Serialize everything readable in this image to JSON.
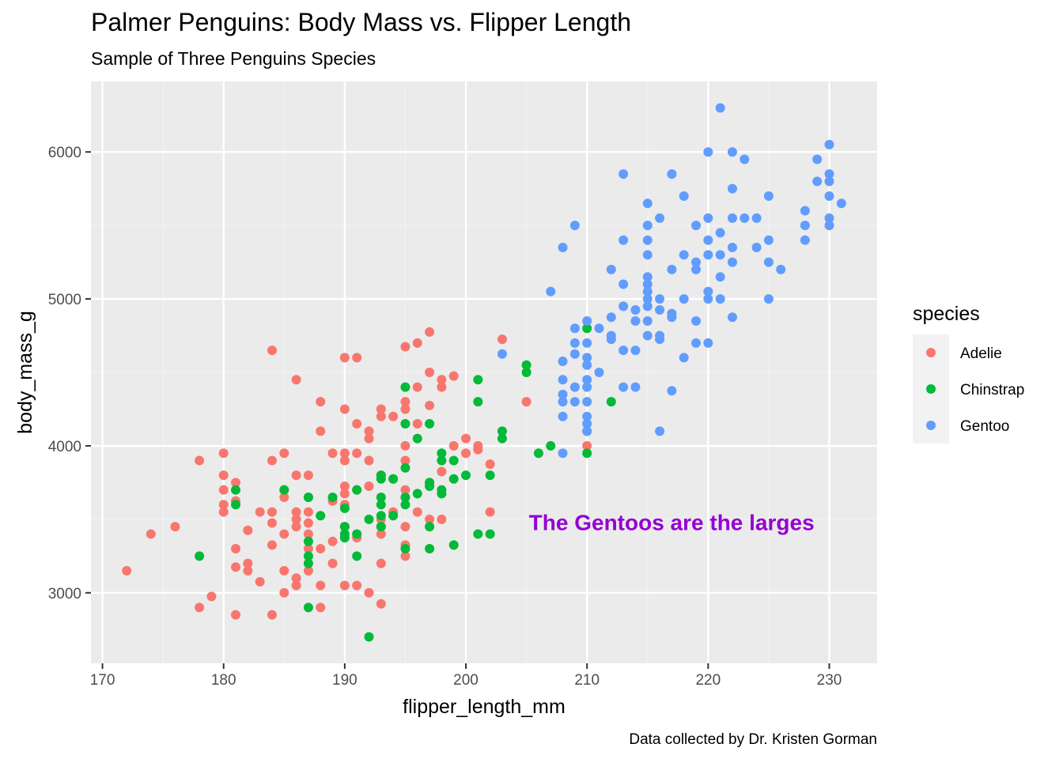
{
  "chart_data": {
    "type": "scatter",
    "title": "Palmer Penguins: Body Mass vs. Flipper Length",
    "subtitle": "Sample of Three Penguins Species",
    "caption": "Data collected by Dr. Kristen Gorman",
    "xlabel": "flipper_length_mm",
    "ylabel": "body_mass_g",
    "xlim": [
      169.05,
      233.95
    ],
    "ylim": [
      2520,
      6480
    ],
    "x_ticks": [
      170,
      180,
      190,
      200,
      210,
      220,
      230
    ],
    "y_ticks": [
      3000,
      4000,
      5000,
      6000
    ],
    "grid": true,
    "panel_background": "#ebebeb",
    "legend": {
      "title": "species",
      "placement": "right"
    },
    "annotation": {
      "text": "The Gentoos are the larges",
      "x": 205.2,
      "y": 3480,
      "color": "#9400d3"
    },
    "series": [
      {
        "name": "Adelie",
        "color": "#f8766d",
        "points": [
          [
            172,
            3150
          ],
          [
            174,
            3400
          ],
          [
            176,
            3450
          ],
          [
            178,
            3900
          ],
          [
            178,
            2900
          ],
          [
            179,
            2975
          ],
          [
            180,
            3950
          ],
          [
            180,
            3800
          ],
          [
            180,
            3700
          ],
          [
            180,
            3600
          ],
          [
            180,
            3550
          ],
          [
            181,
            3750
          ],
          [
            181,
            3625
          ],
          [
            181,
            3300
          ],
          [
            181,
            3175
          ],
          [
            181,
            2850
          ],
          [
            182,
            3425
          ],
          [
            182,
            3200
          ],
          [
            182,
            3150
          ],
          [
            183,
            3550
          ],
          [
            183,
            3075
          ],
          [
            184,
            4650
          ],
          [
            184,
            3900
          ],
          [
            184,
            3550
          ],
          [
            184,
            3475
          ],
          [
            184,
            3325
          ],
          [
            184,
            2850
          ],
          [
            185,
            3950
          ],
          [
            185,
            3700
          ],
          [
            185,
            3650
          ],
          [
            185,
            3400
          ],
          [
            185,
            3150
          ],
          [
            185,
            3000
          ],
          [
            186,
            4450
          ],
          [
            186,
            3800
          ],
          [
            186,
            3550
          ],
          [
            186,
            3500
          ],
          [
            186,
            3450
          ],
          [
            186,
            3100
          ],
          [
            186,
            3050
          ],
          [
            187,
            3800
          ],
          [
            187,
            3650
          ],
          [
            187,
            3550
          ],
          [
            187,
            3475
          ],
          [
            187,
            3400
          ],
          [
            187,
            3300
          ],
          [
            187,
            3150
          ],
          [
            188,
            4300
          ],
          [
            188,
            4100
          ],
          [
            188,
            3300
          ],
          [
            188,
            3050
          ],
          [
            188,
            2900
          ],
          [
            189,
            3950
          ],
          [
            189,
            3625
          ],
          [
            189,
            3350
          ],
          [
            189,
            3200
          ],
          [
            190,
            4600
          ],
          [
            190,
            4250
          ],
          [
            190,
            3950
          ],
          [
            190,
            3900
          ],
          [
            190,
            3725
          ],
          [
            190,
            3675
          ],
          [
            190,
            3600
          ],
          [
            190,
            3450
          ],
          [
            190,
            3050
          ],
          [
            191,
            4600
          ],
          [
            191,
            4150
          ],
          [
            191,
            3950
          ],
          [
            191,
            3700
          ],
          [
            191,
            3375
          ],
          [
            191,
            3050
          ],
          [
            192,
            4100
          ],
          [
            192,
            4050
          ],
          [
            192,
            3900
          ],
          [
            192,
            3725
          ],
          [
            192,
            3000
          ],
          [
            193,
            4250
          ],
          [
            193,
            4200
          ],
          [
            193,
            3800
          ],
          [
            193,
            3500
          ],
          [
            193,
            3450
          ],
          [
            193,
            3400
          ],
          [
            193,
            3200
          ],
          [
            193,
            2925
          ],
          [
            194,
            4200
          ],
          [
            194,
            3775
          ],
          [
            194,
            3550
          ],
          [
            195,
            4675
          ],
          [
            195,
            4300
          ],
          [
            195,
            4250
          ],
          [
            195,
            4000
          ],
          [
            195,
            3900
          ],
          [
            195,
            3700
          ],
          [
            195,
            3450
          ],
          [
            195,
            3325
          ],
          [
            195,
            3250
          ],
          [
            196,
            4700
          ],
          [
            196,
            4400
          ],
          [
            196,
            4150
          ],
          [
            196,
            3550
          ],
          [
            197,
            4775
          ],
          [
            197,
            4500
          ],
          [
            197,
            4275
          ],
          [
            197,
            3750
          ],
          [
            197,
            3500
          ],
          [
            198,
            4450
          ],
          [
            198,
            4400
          ],
          [
            198,
            3825
          ],
          [
            198,
            3500
          ],
          [
            199,
            4475
          ],
          [
            199,
            4000
          ],
          [
            200,
            4050
          ],
          [
            200,
            3950
          ],
          [
            201,
            4000
          ],
          [
            201,
            3975
          ],
          [
            202,
            3875
          ],
          [
            202,
            3550
          ],
          [
            203,
            4725
          ],
          [
            205,
            4300
          ],
          [
            210,
            4000
          ]
        ]
      },
      {
        "name": "Chinstrap",
        "color": "#00ba38",
        "points": [
          [
            178,
            3250
          ],
          [
            181,
            3700
          ],
          [
            181,
            3600
          ],
          [
            185,
            3700
          ],
          [
            187,
            3650
          ],
          [
            187,
            3350
          ],
          [
            187,
            3250
          ],
          [
            187,
            3200
          ],
          [
            187,
            2900
          ],
          [
            188,
            3525
          ],
          [
            189,
            3650
          ],
          [
            190,
            3575
          ],
          [
            190,
            3450
          ],
          [
            190,
            3400
          ],
          [
            190,
            3375
          ],
          [
            191,
            3700
          ],
          [
            191,
            3400
          ],
          [
            191,
            3250
          ],
          [
            192,
            3500
          ],
          [
            192,
            2700
          ],
          [
            193,
            3800
          ],
          [
            193,
            3775
          ],
          [
            193,
            3650
          ],
          [
            193,
            3600
          ],
          [
            193,
            3525
          ],
          [
            193,
            3450
          ],
          [
            194,
            3775
          ],
          [
            194,
            3525
          ],
          [
            195,
            4400
          ],
          [
            195,
            4150
          ],
          [
            195,
            3850
          ],
          [
            195,
            3650
          ],
          [
            195,
            3600
          ],
          [
            195,
            3300
          ],
          [
            196,
            4050
          ],
          [
            196,
            3675
          ],
          [
            197,
            4150
          ],
          [
            197,
            3750
          ],
          [
            197,
            3725
          ],
          [
            197,
            3450
          ],
          [
            197,
            3300
          ],
          [
            198,
            3950
          ],
          [
            198,
            3900
          ],
          [
            198,
            3700
          ],
          [
            198,
            3675
          ],
          [
            199,
            3900
          ],
          [
            199,
            3775
          ],
          [
            199,
            3325
          ],
          [
            200,
            3800
          ],
          [
            201,
            4450
          ],
          [
            201,
            4300
          ],
          [
            201,
            3400
          ],
          [
            202,
            3800
          ],
          [
            202,
            3400
          ],
          [
            203,
            4100
          ],
          [
            203,
            4050
          ],
          [
            205,
            4550
          ],
          [
            205,
            4500
          ],
          [
            206,
            3950
          ],
          [
            207,
            4000
          ],
          [
            210,
            4800
          ],
          [
            210,
            4100
          ],
          [
            210,
            3950
          ],
          [
            212,
            4300
          ]
        ]
      },
      {
        "name": "Gentoo",
        "color": "#619cff",
        "points": [
          [
            203,
            4625
          ],
          [
            207,
            5050
          ],
          [
            208,
            5350
          ],
          [
            208,
            4575
          ],
          [
            208,
            4450
          ],
          [
            208,
            4350
          ],
          [
            208,
            4300
          ],
          [
            208,
            4200
          ],
          [
            208,
            3950
          ],
          [
            209,
            5500
          ],
          [
            209,
            4800
          ],
          [
            209,
            4700
          ],
          [
            209,
            4625
          ],
          [
            209,
            4400
          ],
          [
            209,
            4300
          ],
          [
            210,
            4850
          ],
          [
            210,
            4700
          ],
          [
            210,
            4600
          ],
          [
            210,
            4550
          ],
          [
            210,
            4450
          ],
          [
            210,
            4400
          ],
          [
            210,
            4300
          ],
          [
            210,
            4200
          ],
          [
            210,
            4150
          ],
          [
            210,
            4100
          ],
          [
            211,
            4800
          ],
          [
            211,
            4500
          ],
          [
            212,
            5200
          ],
          [
            212,
            4875
          ],
          [
            212,
            4750
          ],
          [
            212,
            4725
          ],
          [
            213,
            5850
          ],
          [
            213,
            5400
          ],
          [
            213,
            5100
          ],
          [
            213,
            4950
          ],
          [
            213,
            4650
          ],
          [
            213,
            4400
          ],
          [
            214,
            4925
          ],
          [
            214,
            4850
          ],
          [
            214,
            4650
          ],
          [
            214,
            4400
          ],
          [
            215,
            5650
          ],
          [
            215,
            5500
          ],
          [
            215,
            5400
          ],
          [
            215,
            5300
          ],
          [
            215,
            5150
          ],
          [
            215,
            5100
          ],
          [
            215,
            5050
          ],
          [
            215,
            5000
          ],
          [
            215,
            4950
          ],
          [
            215,
            4850
          ],
          [
            215,
            4750
          ],
          [
            216,
            5550
          ],
          [
            216,
            5000
          ],
          [
            216,
            4925
          ],
          [
            216,
            4750
          ],
          [
            216,
            4725
          ],
          [
            216,
            4100
          ],
          [
            217,
            5850
          ],
          [
            217,
            5200
          ],
          [
            217,
            4900
          ],
          [
            217,
            4875
          ],
          [
            217,
            4375
          ],
          [
            218,
            5700
          ],
          [
            218,
            5300
          ],
          [
            218,
            5000
          ],
          [
            218,
            4600
          ],
          [
            219,
            5500
          ],
          [
            219,
            5250
          ],
          [
            219,
            5200
          ],
          [
            219,
            4850
          ],
          [
            219,
            4700
          ],
          [
            220,
            6000
          ],
          [
            220,
            5550
          ],
          [
            220,
            5400
          ],
          [
            220,
            5300
          ],
          [
            220,
            5050
          ],
          [
            220,
            5000
          ],
          [
            220,
            4700
          ],
          [
            221,
            6300
          ],
          [
            221,
            5450
          ],
          [
            221,
            5300
          ],
          [
            221,
            5150
          ],
          [
            221,
            5000
          ],
          [
            222,
            6000
          ],
          [
            222,
            5750
          ],
          [
            222,
            5550
          ],
          [
            222,
            5350
          ],
          [
            222,
            5250
          ],
          [
            222,
            4875
          ],
          [
            223,
            5950
          ],
          [
            223,
            5550
          ],
          [
            224,
            5550
          ],
          [
            224,
            5350
          ],
          [
            225,
            5700
          ],
          [
            225,
            5400
          ],
          [
            225,
            5250
          ],
          [
            225,
            5000
          ],
          [
            226,
            5200
          ],
          [
            228,
            5600
          ],
          [
            228,
            5500
          ],
          [
            228,
            5400
          ],
          [
            229,
            5950
          ],
          [
            229,
            5800
          ],
          [
            230,
            6050
          ],
          [
            230,
            5850
          ],
          [
            230,
            5800
          ],
          [
            230,
            5700
          ],
          [
            230,
            5550
          ],
          [
            230,
            5500
          ],
          [
            231,
            5650
          ]
        ]
      }
    ]
  }
}
